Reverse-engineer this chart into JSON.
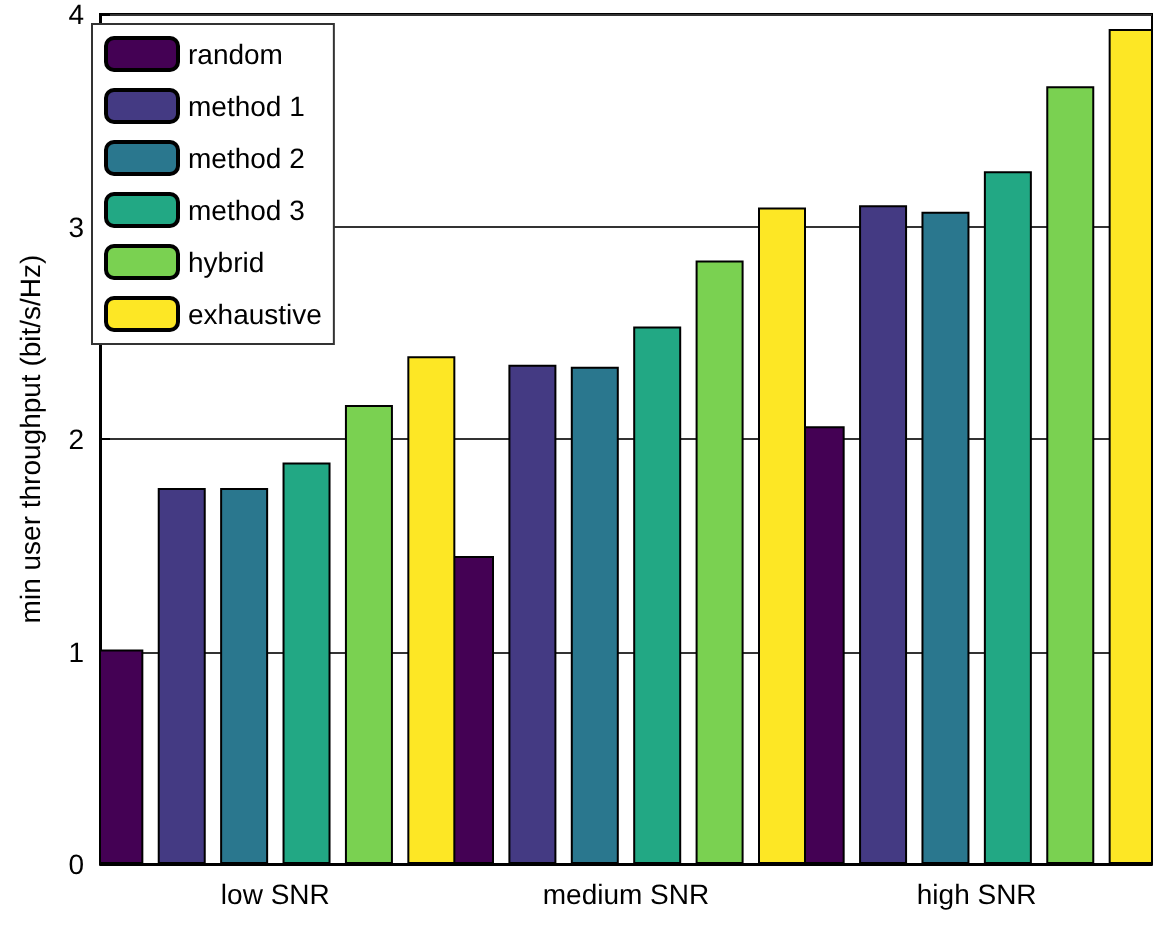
{
  "chart_data": {
    "type": "bar",
    "ylabel": "min user throughput (bit/s/Hz)",
    "categories": [
      "low SNR",
      "medium SNR",
      "high SNR"
    ],
    "series": [
      {
        "name": "random",
        "color": "#440154",
        "values": [
          1.01,
          1.45,
          2.06
        ]
      },
      {
        "name": "method 1",
        "color": "#443a83",
        "values": [
          1.77,
          2.35,
          3.1
        ]
      },
      {
        "name": "method 2",
        "color": "#2a778e",
        "values": [
          1.77,
          2.34,
          3.07
        ]
      },
      {
        "name": "method 3",
        "color": "#22a884",
        "values": [
          1.89,
          2.53,
          3.26
        ]
      },
      {
        "name": "hybrid",
        "color": "#7ad151",
        "values": [
          2.16,
          2.84,
          3.66
        ]
      },
      {
        "name": "exhaustive",
        "color": "#fde725",
        "values": [
          2.39,
          3.09,
          3.93
        ]
      }
    ],
    "ylim": [
      0,
      4
    ],
    "yticks": [
      0,
      1,
      2,
      3,
      4
    ],
    "grid": true,
    "legend": "top left"
  }
}
